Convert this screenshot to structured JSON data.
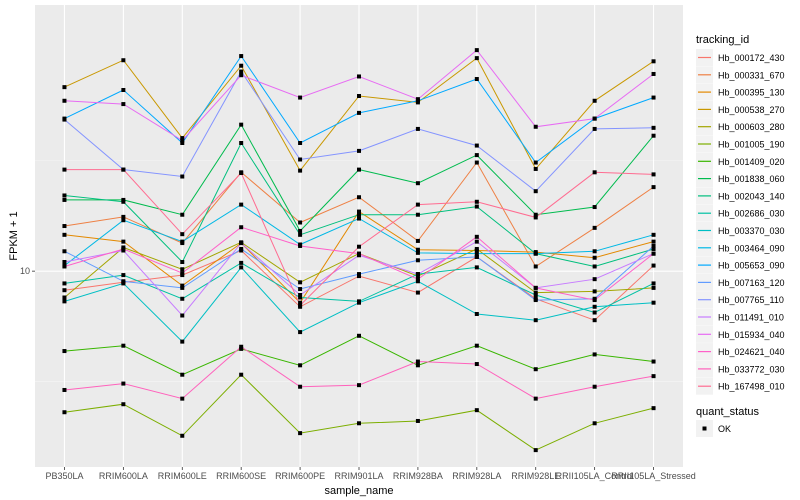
{
  "chart_data": {
    "type": "line",
    "title": "",
    "xlabel": "sample_name",
    "ylabel": "FPKM + 1",
    "y_scale": "log10",
    "y_ticks": [
      10
    ],
    "y_tick_labels": [
      "10"
    ],
    "ylim": [
      1.3,
      160
    ],
    "grid": true,
    "legend_placement": "right",
    "categories": [
      "PB350LA",
      "RRIM600LA",
      "RRIM600LE",
      "RRIM600SE",
      "RRIM600PE",
      "RRIM901LA",
      "RRIM928BA",
      "RRIM928LA",
      "RRIM928LE",
      "RRII105LA_Control",
      "RRII105LA_Stressed"
    ],
    "legend_title": "tracking_id",
    "series": [
      {
        "name": "Hb_000172_430",
        "color": "#F8766D",
        "values": [
          8.2,
          8.9,
          9.6,
          12.4,
          6.9,
          9.5,
          8.0,
          11.6,
          7.5,
          6.0,
          10.6
        ]
      },
      {
        "name": "Hb_000331_670",
        "color": "#EE8044",
        "values": [
          16.0,
          17.6,
          13.4,
          28.0,
          16.6,
          21.6,
          13.7,
          31.0,
          10.5,
          15.7,
          24.0
        ]
      },
      {
        "name": "Hb_000395_130",
        "color": "#E38900",
        "values": [
          14.6,
          13.6,
          8.6,
          13.4,
          7.2,
          18.6,
          12.5,
          12.4,
          12.2,
          11.5,
          13.6
        ]
      },
      {
        "name": "Hb_000538_270",
        "color": "#C99800",
        "values": [
          68.0,
          90.0,
          40.0,
          85.0,
          28.5,
          62.0,
          58.0,
          92.0,
          29.0,
          59.0,
          89.0
        ]
      },
      {
        "name": "Hb_000603_280",
        "color": "#A3A500",
        "values": [
          7.6,
          12.8,
          10.2,
          13.5,
          8.9,
          12.0,
          9.5,
          12.6,
          8.0,
          8.1,
          8.4
        ]
      },
      {
        "name": "Hb_001005_190",
        "color": "#7CAE00",
        "values": [
          2.3,
          2.5,
          1.8,
          3.4,
          1.85,
          2.05,
          2.1,
          2.35,
          1.55,
          2.05,
          2.4
        ]
      },
      {
        "name": "Hb_001409_020",
        "color": "#39B600",
        "values": [
          4.35,
          4.6,
          3.4,
          4.45,
          3.75,
          5.1,
          3.75,
          4.6,
          3.6,
          4.2,
          3.9
        ]
      },
      {
        "name": "Hb_001838_060",
        "color": "#00BB4E",
        "values": [
          21.0,
          21.0,
          18.0,
          46.0,
          15.2,
          28.8,
          25.0,
          33.5,
          18.0,
          19.5,
          41.0
        ]
      },
      {
        "name": "Hb_002043_140",
        "color": "#00BF7D",
        "values": [
          22.0,
          20.6,
          11.0,
          38.0,
          14.6,
          18.0,
          18.0,
          19.6,
          12.0,
          10.5,
          12.6
        ]
      },
      {
        "name": "Hb_002686_030",
        "color": "#00C1A3",
        "values": [
          8.8,
          9.6,
          7.5,
          10.9,
          7.6,
          7.3,
          9.7,
          10.4,
          7.8,
          6.5,
          8.8
        ]
      },
      {
        "name": "Hb_003370_030",
        "color": "#00BFC4",
        "values": [
          7.3,
          8.8,
          4.8,
          10.4,
          5.3,
          7.2,
          9.0,
          6.4,
          6.0,
          6.9,
          7.2
        ]
      },
      {
        "name": "Hb_003464_090",
        "color": "#00B8E5",
        "values": [
          10.6,
          17.0,
          13.6,
          20.0,
          13.2,
          17.3,
          12.1,
          12.0,
          12.0,
          12.3,
          14.6
        ]
      },
      {
        "name": "Hb_005653_090",
        "color": "#00A9FF",
        "values": [
          49.0,
          66.0,
          38.0,
          94.0,
          38.0,
          52.0,
          59.0,
          74.0,
          31.0,
          49.0,
          61.0
        ]
      },
      {
        "name": "Hb_007163_120",
        "color": "#619CFF",
        "values": [
          12.3,
          9.0,
          8.4,
          12.6,
          8.3,
          9.7,
          11.2,
          11.6,
          7.4,
          7.5,
          13.0
        ]
      },
      {
        "name": "Hb_007765_110",
        "color": "#8494FF",
        "values": [
          48.5,
          28.8,
          26.8,
          80.0,
          32.0,
          35.0,
          44.0,
          37.0,
          23.0,
          44.0,
          44.5
        ]
      },
      {
        "name": "Hb_011491_010",
        "color": "#C77CFF",
        "values": [
          11.0,
          12.4,
          6.3,
          13.4,
          7.8,
          11.8,
          9.7,
          13.6,
          8.4,
          9.2,
          12.0
        ]
      },
      {
        "name": "Hb_015934_040",
        "color": "#E76BF3",
        "values": [
          59.0,
          57.0,
          39.0,
          77.0,
          61.0,
          76.0,
          60.0,
          100.0,
          45.0,
          49.0,
          78.0
        ]
      },
      {
        "name": "Hb_024621_040",
        "color": "#FF61C9",
        "values": [
          10.5,
          12.6,
          9.8,
          15.8,
          13.0,
          12.0,
          9.2,
          14.3,
          8.4,
          7.4,
          12.0
        ]
      },
      {
        "name": "Hb_033772_030",
        "color": "#FF62BC",
        "values": [
          2.9,
          3.1,
          2.65,
          4.55,
          3.0,
          3.05,
          3.9,
          3.8,
          2.65,
          3.0,
          3.35
        ]
      },
      {
        "name": "Hb_167498_010",
        "color": "#FF6C91",
        "values": [
          28.8,
          28.8,
          14.7,
          27.8,
          7.0,
          12.9,
          20.0,
          20.6,
          17.5,
          28.0,
          27.4
        ]
      }
    ],
    "shape_legend": {
      "title": "quant_status",
      "entries": [
        "OK"
      ]
    }
  }
}
